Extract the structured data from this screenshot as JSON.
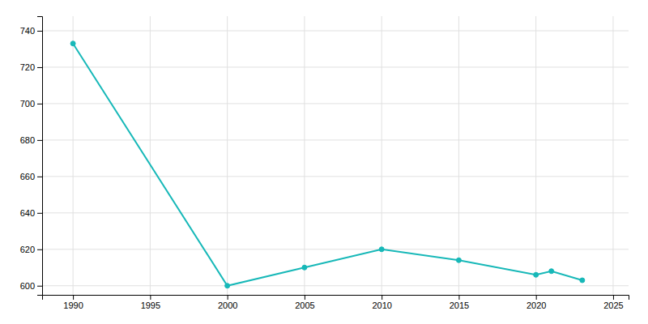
{
  "chart_data": {
    "type": "line",
    "x": [
      1990,
      2000,
      2005,
      2010,
      2015,
      2020,
      2021,
      2023
    ],
    "values": [
      733,
      600,
      610,
      620,
      614,
      606,
      608,
      603
    ],
    "color": "#17b8b8",
    "marker": "circle",
    "xlim": [
      1988,
      2026
    ],
    "ylim": [
      595,
      748
    ],
    "xticks": [
      1990,
      1995,
      2000,
      2005,
      2010,
      2015,
      2020,
      2025
    ],
    "yticks": [
      600,
      620,
      640,
      660,
      680,
      700,
      720,
      740
    ],
    "grid": true
  }
}
